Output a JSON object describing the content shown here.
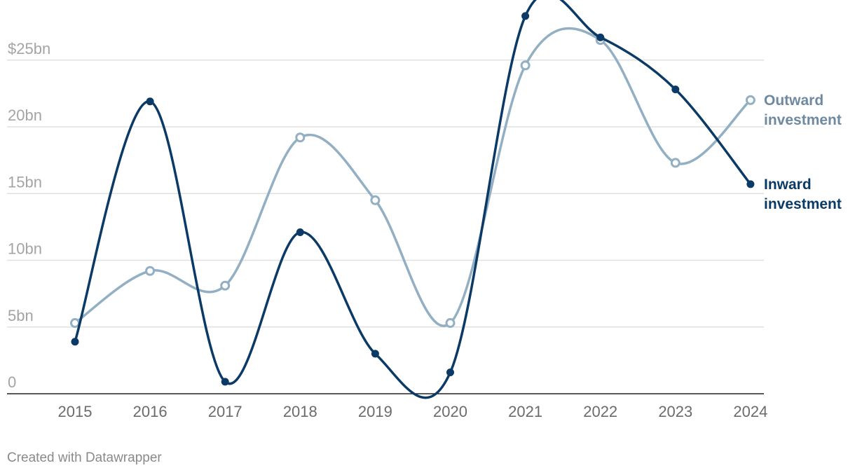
{
  "footer": "Created with Datawrapper",
  "colors": {
    "inward": "#0b3a66",
    "outward": "#93afc3",
    "grid": "#e0e0e0",
    "baseline": "#222222"
  },
  "chart_data": {
    "type": "line",
    "x": [
      2015,
      2016,
      2017,
      2018,
      2019,
      2020,
      2021,
      2022,
      2023,
      2024
    ],
    "x_tick_labels": [
      "2015",
      "2016",
      "2017",
      "2018",
      "2019",
      "2020",
      "2021",
      "2022",
      "2023",
      "2024"
    ],
    "ylim": [
      0,
      28
    ],
    "y_ticks": [
      0,
      5,
      10,
      15,
      20,
      25
    ],
    "y_tick_labels": [
      "0",
      "5bn",
      "10bn",
      "15bn",
      "20bn",
      "$25bn"
    ],
    "grid": true,
    "legend": "direct labels at line ends (right)",
    "series": [
      {
        "name": "Outward investment",
        "name_lines": [
          "Outward",
          "investment"
        ],
        "marker": "hollow-circle",
        "values": [
          5.3,
          9.2,
          8.1,
          19.2,
          14.5,
          5.3,
          24.6,
          26.5,
          17.3,
          22.0
        ]
      },
      {
        "name": "Inward investment",
        "name_lines": [
          "Inward",
          "investment"
        ],
        "marker": "filled-circle",
        "values": [
          3.9,
          21.9,
          0.9,
          12.1,
          3.0,
          1.6,
          28.3,
          26.7,
          22.8,
          15.7
        ]
      }
    ]
  }
}
